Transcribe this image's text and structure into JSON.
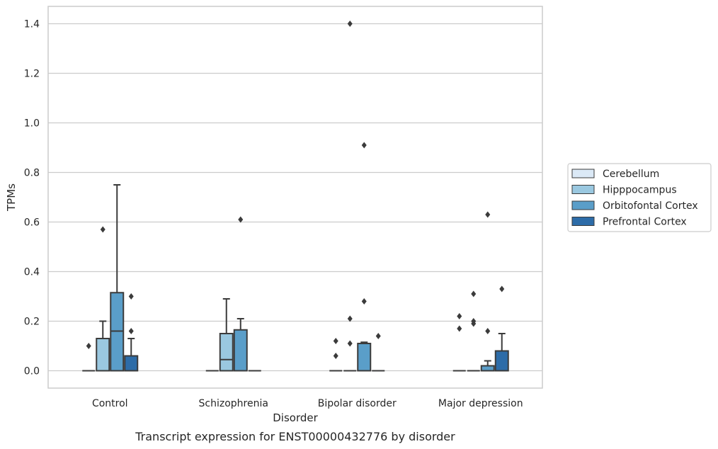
{
  "chart_data": {
    "type": "box",
    "title": "",
    "caption": "Transcript expression for ENST00000432776 by disorder",
    "xlabel": "Disorder",
    "ylabel": "TPMs",
    "ylim": [
      -0.07,
      1.47
    ],
    "yticks": [
      0.0,
      0.2,
      0.4,
      0.6,
      0.8,
      1.0,
      1.2,
      1.4
    ],
    "ytick_labels": [
      "0.0",
      "0.2",
      "0.4",
      "0.6",
      "0.8",
      "1.0",
      "1.2",
      "1.4"
    ],
    "grid": true,
    "legend_position": "right",
    "categories": [
      "Control",
      "Schizophrenia",
      "Bipolar disorder",
      "Major depression"
    ],
    "series": [
      {
        "name": "Cerebellum",
        "color": "#dbe9f6",
        "boxes": [
          {
            "q1": 0,
            "median": 0,
            "q3": 0,
            "whislo": 0,
            "whishi": 0,
            "fliers": [
              0.1
            ]
          },
          {
            "q1": 0,
            "median": 0,
            "q3": 0,
            "whislo": 0,
            "whishi": 0,
            "fliers": []
          },
          {
            "q1": 0,
            "median": 0,
            "q3": 0,
            "whislo": 0,
            "whishi": 0,
            "fliers": [
              0.06,
              0.12
            ]
          },
          {
            "q1": 0,
            "median": 0,
            "q3": 0,
            "whislo": 0,
            "whishi": 0,
            "fliers": [
              0.17,
              0.22
            ]
          }
        ]
      },
      {
        "name": "Hipppocampus",
        "color": "#9ac8e0",
        "boxes": [
          {
            "q1": 0,
            "median": 0,
            "q3": 0.13,
            "whislo": 0,
            "whishi": 0.2,
            "fliers": [
              0.57
            ]
          },
          {
            "q1": 0,
            "median": 0.045,
            "q3": 0.15,
            "whislo": 0,
            "whishi": 0.29,
            "fliers": []
          },
          {
            "q1": 0,
            "median": 0,
            "q3": 0,
            "whislo": 0,
            "whishi": 0,
            "fliers": [
              0.11,
              0.21,
              1.4
            ]
          },
          {
            "q1": 0,
            "median": 0,
            "q3": 0,
            "whislo": 0,
            "whishi": 0,
            "fliers": [
              0.19,
              0.2,
              0.31
            ]
          }
        ]
      },
      {
        "name": "Orbitofontal Cortex",
        "color": "#5a9ec9",
        "boxes": [
          {
            "q1": 0,
            "median": 0.16,
            "q3": 0.315,
            "whislo": 0,
            "whishi": 0.75,
            "fliers": []
          },
          {
            "q1": 0,
            "median": 0,
            "q3": 0.165,
            "whislo": 0,
            "whishi": 0.21,
            "fliers": [
              0.61
            ]
          },
          {
            "q1": 0,
            "median": 0,
            "q3": 0.11,
            "whislo": 0,
            "whishi": 0.115,
            "fliers": [
              0.28,
              0.91
            ]
          },
          {
            "q1": 0,
            "median": 0,
            "q3": 0.02,
            "whislo": 0,
            "whishi": 0.04,
            "fliers": [
              0.16,
              0.63
            ]
          }
        ]
      },
      {
        "name": "Prefrontal Cortex",
        "color": "#2d6ca8",
        "boxes": [
          {
            "q1": 0,
            "median": 0,
            "q3": 0.06,
            "whislo": 0,
            "whishi": 0.13,
            "fliers": [
              0.16,
              0.3
            ]
          },
          {
            "q1": 0,
            "median": 0,
            "q3": 0,
            "whislo": 0,
            "whishi": 0,
            "fliers": []
          },
          {
            "q1": 0,
            "median": 0,
            "q3": 0,
            "whislo": 0,
            "whishi": 0,
            "fliers": [
              0.14
            ]
          },
          {
            "q1": 0,
            "median": 0,
            "q3": 0.08,
            "whislo": 0,
            "whishi": 0.15,
            "fliers": [
              0.33
            ]
          }
        ]
      }
    ]
  },
  "style": {
    "line_color": "#3b3b3b",
    "grid_color": "#cccccc",
    "frame_color": "#cccccc"
  }
}
